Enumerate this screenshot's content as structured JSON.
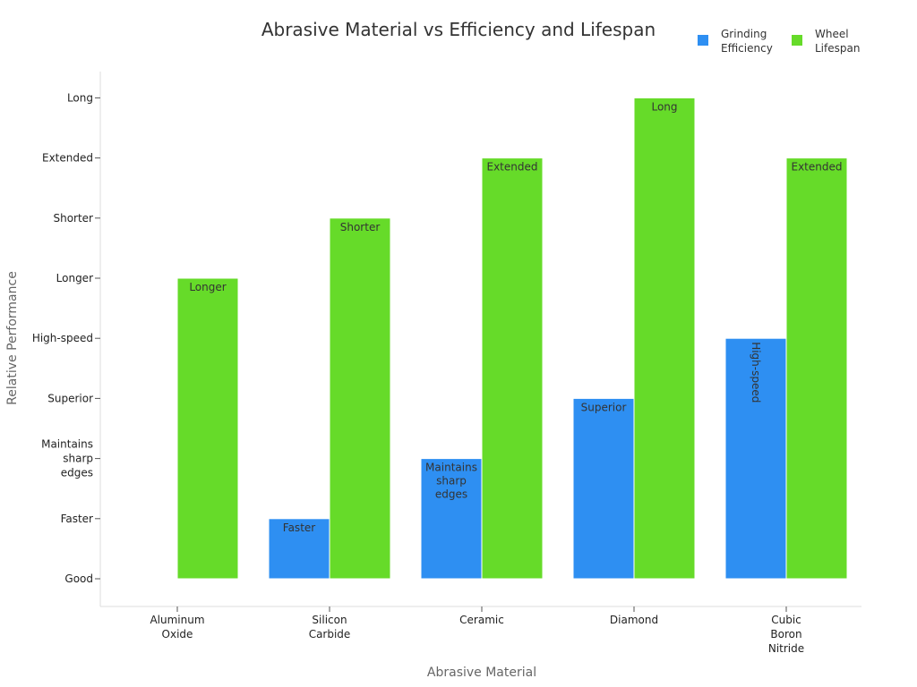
{
  "chart_data": {
    "type": "bar",
    "title": "Abrasive Material vs Efficiency and Lifespan",
    "xlabel": "Abrasive Material",
    "ylabel": "Relative Performance",
    "categories": [
      "Aluminum Oxide",
      "Silicon Carbide",
      "Ceramic",
      "Diamond",
      "Cubic Boron Nitride"
    ],
    "y_categories": [
      "Good",
      "Faster",
      "Maintains sharp edges",
      "Superior",
      "High-speed",
      "Longer",
      "Shorter",
      "Extended",
      "Long"
    ],
    "series": [
      {
        "name": "Grinding Efficiency",
        "color": "#2e8ff2",
        "values": [
          "Good",
          "Faster",
          "Maintains sharp edges",
          "Superior",
          "High-speed"
        ],
        "labels": [
          "",
          "Faster",
          "Maintains sharp edges",
          "Superior",
          "High-speed"
        ]
      },
      {
        "name": "Wheel Lifespan",
        "color": "#66db29",
        "values": [
          "Longer",
          "Shorter",
          "Extended",
          "Long",
          "Extended"
        ],
        "labels": [
          "Longer",
          "Shorter",
          "Extended",
          "Long",
          "Extended"
        ]
      }
    ],
    "legend_position": "top-right",
    "grid": false
  }
}
